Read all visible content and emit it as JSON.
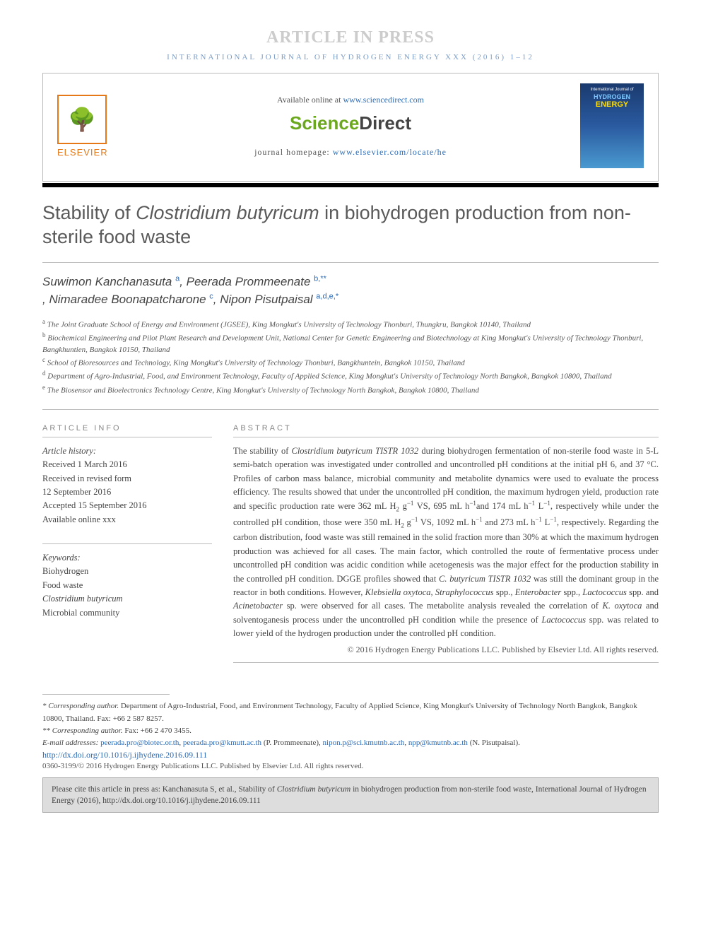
{
  "press_banner": "ARTICLE IN PRESS",
  "journal_header": "INTERNATIONAL JOURNAL OF HYDROGEN ENERGY XXX (2016) 1–12",
  "header": {
    "available_prefix": "Available online at ",
    "available_url": "www.sciencedirect.com",
    "sciencedirect_science": "Science",
    "sciencedirect_direct": "Direct",
    "homepage_prefix": "journal homepage: ",
    "homepage_url": "www.elsevier.com/locate/he",
    "elsevier_label": "ELSEVIER",
    "cover_toptext": "International Journal of",
    "cover_hydrogen": "HYDROGEN",
    "cover_energy": "ENERGY"
  },
  "title_pre": "Stability of ",
  "title_italic": "Clostridium butyricum",
  "title_post": " in biohydrogen production from non-sterile food waste",
  "authors": [
    {
      "name": "Suwimon Kanchanasuta ",
      "sup": "a"
    },
    {
      "name": ", Peerada Prommeenate ",
      "sup": "b,**"
    },
    {
      "name": ", Nimaradee Boonapatcharone ",
      "sup": "c"
    },
    {
      "name": ", Nipon Pisutpaisal ",
      "sup": "a,d,e,*"
    }
  ],
  "affiliations": [
    {
      "sup": "a",
      "text": " The Joint Graduate School of Energy and Environment (JGSEE), King Mongkut's University of Technology Thonburi, Thungkru, Bangkok 10140, Thailand"
    },
    {
      "sup": "b",
      "text": " Biochemical Engineering and Pilot Plant Research and Development Unit, National Center for Genetic Engineering and Biotechnology at King Mongkut's University of Technology Thonburi, Bangkhuntien, Bangkok 10150, Thailand"
    },
    {
      "sup": "c",
      "text": " School of Bioresources and Technology, King Mongkut's University of Technology Thonburi, Bangkhuntein, Bangkok 10150, Thailand"
    },
    {
      "sup": "d",
      "text": " Department of Agro-Industrial, Food, and Environment Technology, Faculty of Applied Science, King Mongkut's University of Technology North Bangkok, Bangkok 10800, Thailand"
    },
    {
      "sup": "e",
      "text": " The Biosensor and Bioelectronics Technology Centre, King Mongkut's University of Technology North Bangkok, Bangkok 10800, Thailand"
    }
  ],
  "article_info_head": "ARTICLE INFO",
  "history_label": "Article history:",
  "history_lines": [
    "Received 1 March 2016",
    "Received in revised form",
    "12 September 2016",
    "Accepted 15 September 2016",
    "Available online xxx"
  ],
  "keywords_label": "Keywords:",
  "keywords": [
    "Biohydrogen",
    "Food waste",
    "Clostridium butyricum",
    "Microbial community"
  ],
  "abstract_head": "ABSTRACT",
  "abstract_html": "The stability of <span class=\"italic\">Clostridium butyricum TISTR 1032</span> during biohydrogen fermentation of non-sterile food waste in 5-L semi-batch operation was investigated under controlled and uncontrolled pH conditions at the initial pH 6, and 37 °C. Profiles of carbon mass balance, microbial community and metabolite dynamics were used to evaluate the process efficiency. The results showed that under the uncontrolled pH condition, the maximum hydrogen yield, production rate and specific production rate were 362 mL H<sub>2</sub> g<sup>−1</sup> VS, 695 mL h<sup>−1</sup>and 174 mL h<sup>−1</sup> L<sup>−1</sup>, respectively while under the controlled pH condition, those were 350 mL H<sub>2</sub> g<sup>−1</sup> VS, 1092 mL h<sup>−1</sup> and 273 mL h<sup>−1</sup> L<sup>−1</sup>, respectively. Regarding the carbon distribution, food waste was still remained in the solid fraction more than 30% at which the maximum hydrogen production was achieved for all cases. The main factor, which controlled the route of fermentative process under uncontrolled pH condition was acidic condition while acetogenesis was the major effect for the production stability in the controlled pH condition. DGGE profiles showed that <span class=\"italic\">C. butyricum TISTR 1032</span> was still the dominant group in the reactor in both conditions. However, <span class=\"italic\">Klebsiella oxytoca</span>, <span class=\"italic\">Straphylococcus</span> spp., <span class=\"italic\">Enterobacter</span> spp., <span class=\"italic\">Lactococcus</span> spp. and <span class=\"italic\">Acinetobacter</span> sp. were observed for all cases. The metabolite analysis revealed the correlation of <span class=\"italic\">K. oxytoca</span> and solventoganesis process under the uncontrolled pH condition while the presence of <span class=\"italic\">Lactococcus</span> spp. was related to lower yield of the hydrogen production under the controlled pH condition.",
  "copyright_abstract": "© 2016 Hydrogen Energy Publications LLC. Published by Elsevier Ltd. All rights reserved.",
  "footnotes": {
    "corr1_label": "* Corresponding author.",
    "corr1_text": " Department of Agro-Industrial, Food, and Environment Technology, Faculty of Applied Science, King Mongkut's University of Technology North Bangkok, Bangkok 10800, Thailand. Fax: +66 2 587 8257.",
    "corr2_label": "** Corresponding author.",
    "corr2_text": " Fax: +66 2 470 3455.",
    "email_label": "E-mail addresses: ",
    "emails": [
      {
        "addr": "peerada.pro@biotec.or.th",
        "after": ", "
      },
      {
        "addr": "peerada.pro@kmutt.ac.th",
        "after": " (P. Prommeenate), "
      },
      {
        "addr": "nipon.p@sci.kmutnb.ac.th",
        "after": ", "
      },
      {
        "addr": "npp@kmutnb.ac.th",
        "after": " (N. Pisutpaisal)."
      }
    ]
  },
  "doi_url": "http://dx.doi.org/10.1016/j.ijhydene.2016.09.111",
  "issn_line": "0360-3199/© 2016 Hydrogen Energy Publications LLC. Published by Elsevier Ltd. All rights reserved.",
  "citation_box": "Please cite this article in press as: Kanchanasuta S, et al., Stability of <span class=\"italic\">Clostridium butyricum</span> in biohydrogen production from non-sterile food waste, International Journal of Hydrogen Energy (2016), http://dx.doi.org/10.1016/j.ijhydene.2016.09.111",
  "colors": {
    "link": "#2a6bb5",
    "orange": "#e67817",
    "green": "#6ba81e",
    "grey_text": "#5a5a5a",
    "light_grey": "#ccc"
  }
}
